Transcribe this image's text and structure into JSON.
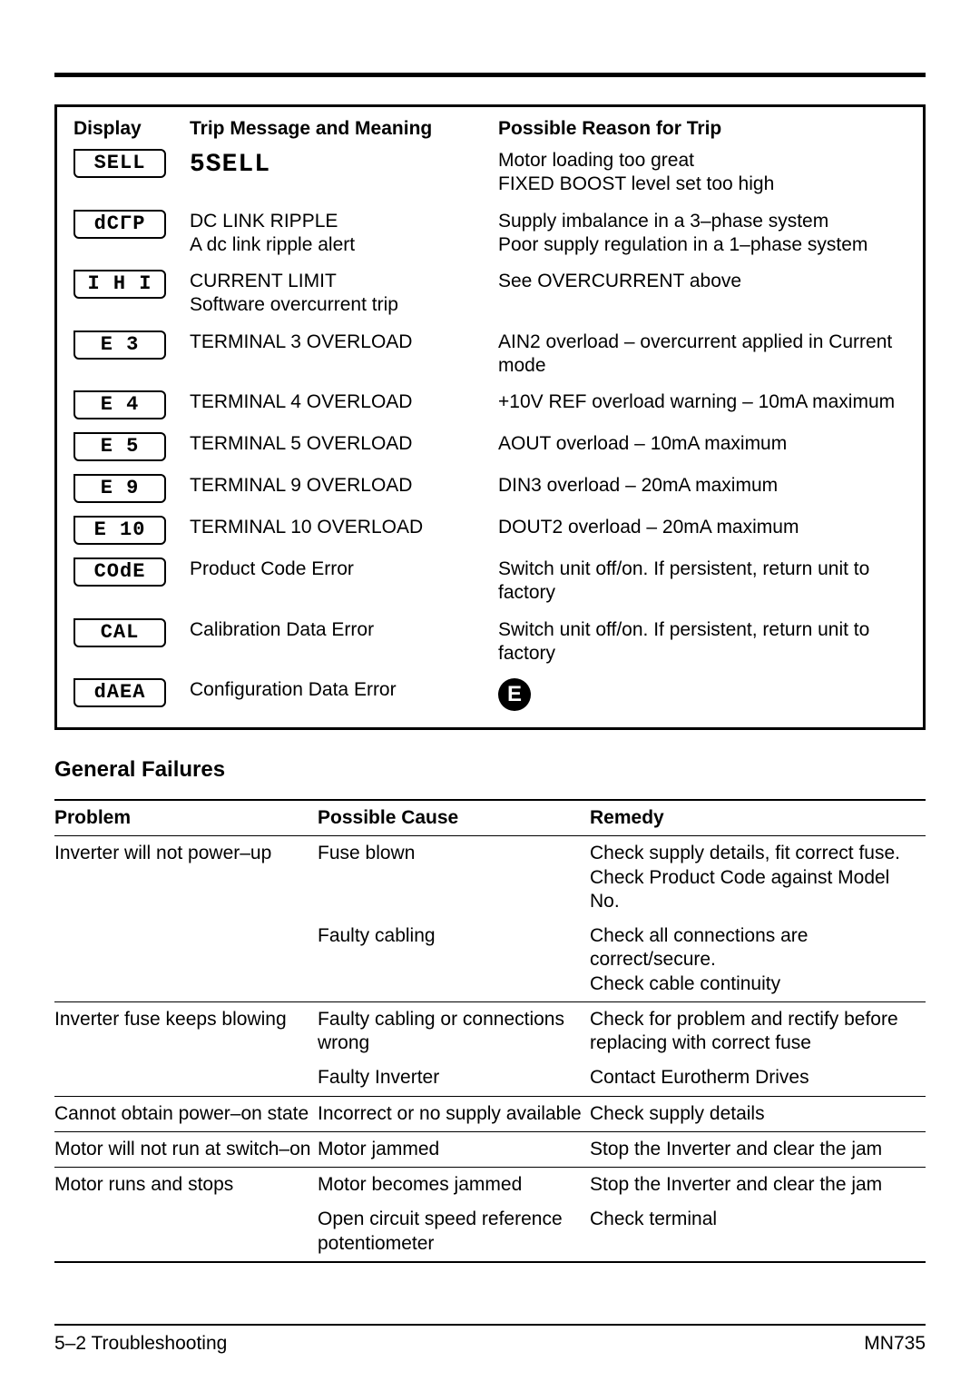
{
  "trip": {
    "headers": {
      "display": "Display",
      "msg": "Trip Message and Meaning",
      "reason": "Possible Reason for Trip"
    },
    "rows": [
      {
        "disp": "SELL",
        "segText": "5SELL",
        "msg1": "",
        "msg2": "",
        "reason1": "Motor loading too great",
        "reason2": "FIXED BOOST level set too high"
      },
      {
        "disp": "dCΓP",
        "msg1": "DC LINK RIPPLE",
        "msg2": "A dc link ripple alert",
        "reason1": "Supply imbalance in a 3–phase system",
        "reason2": "Poor supply regulation in a 1–phase system"
      },
      {
        "disp": "I  H I",
        "msg1": "CURRENT LIMIT",
        "msg2": "Software overcurrent trip",
        "reason1": "See OVERCURRENT above",
        "reason2": ""
      },
      {
        "disp": "E    3",
        "msg1": "TERMINAL 3 OVERLOAD",
        "msg2": "",
        "reason1": "AIN2 overload – overcurrent applied in Current mode",
        "reason2": ""
      },
      {
        "disp": "E    4",
        "msg1": "TERMINAL 4 OVERLOAD",
        "msg2": "",
        "reason1": "+10V REF overload warning – 10mA maximum",
        "reason2": ""
      },
      {
        "disp": "E    5",
        "msg1": "TERMINAL 5 OVERLOAD",
        "msg2": "",
        "reason1": "AOUT overload – 10mA maximum",
        "reason2": ""
      },
      {
        "disp": "E    9",
        "msg1": "TERMINAL 9 OVERLOAD",
        "msg2": "",
        "reason1": "DIN3 overload – 20mA maximum",
        "reason2": ""
      },
      {
        "disp": "E   10",
        "msg1": "TERMINAL 10 OVERLOAD",
        "msg2": "",
        "reason1": "DOUT2 overload – 20mA maximum",
        "reason2": ""
      },
      {
        "disp": "COdE",
        "msg1": "Product Code Error",
        "msg2": "",
        "reason1": "Switch unit off/on. If persistent, return unit to factory",
        "reason2": ""
      },
      {
        "disp": "CAL",
        "msg1": "Calibration Data Error",
        "msg2": "",
        "reason1": "Switch unit off/on. If persistent, return unit to factory",
        "reason2": ""
      },
      {
        "disp": "dAEA",
        "msg1": "Configuration Data Error",
        "msg2": "",
        "eIcon": "E"
      }
    ]
  },
  "general": {
    "title": "General Failures",
    "headers": {
      "problem": "Problem",
      "cause": "Possible Cause",
      "remedy": "Remedy"
    },
    "rows": [
      {
        "problem": "Inverter will not power–up",
        "cause": "Fuse blown",
        "remedy": "Check supply details, fit correct fuse. Check Product Code against Model No.",
        "sep": false
      },
      {
        "problem": "",
        "cause": "Faulty cabling",
        "remedy": "Check all connections are correct/secure.\nCheck cable continuity",
        "sep": true
      },
      {
        "problem": "Inverter fuse keeps blowing",
        "cause": "Faulty cabling or connections wrong",
        "remedy": "Check for problem and rectify before replacing with correct fuse",
        "sep": false
      },
      {
        "problem": "",
        "cause": "Faulty Inverter",
        "remedy": "Contact Eurotherm Drives",
        "sep": true
      },
      {
        "problem": "Cannot obtain power–on state",
        "cause": "Incorrect or no supply available",
        "remedy": "Check supply details",
        "sep": true
      },
      {
        "problem": "Motor will not run at switch–on",
        "cause": "Motor jammed",
        "remedy": "Stop the Inverter and clear the jam",
        "sep": true
      },
      {
        "problem": "Motor runs and stops",
        "cause": "Motor becomes jammed",
        "remedy": "Stop the Inverter and clear the jam",
        "sep": false
      },
      {
        "problem": "",
        "cause": "Open circuit speed reference potentiometer",
        "remedy": "Check terminal",
        "sep": false,
        "last": true
      }
    ]
  },
  "footer": {
    "left": "5–2 Troubleshooting",
    "right": "MN735"
  }
}
